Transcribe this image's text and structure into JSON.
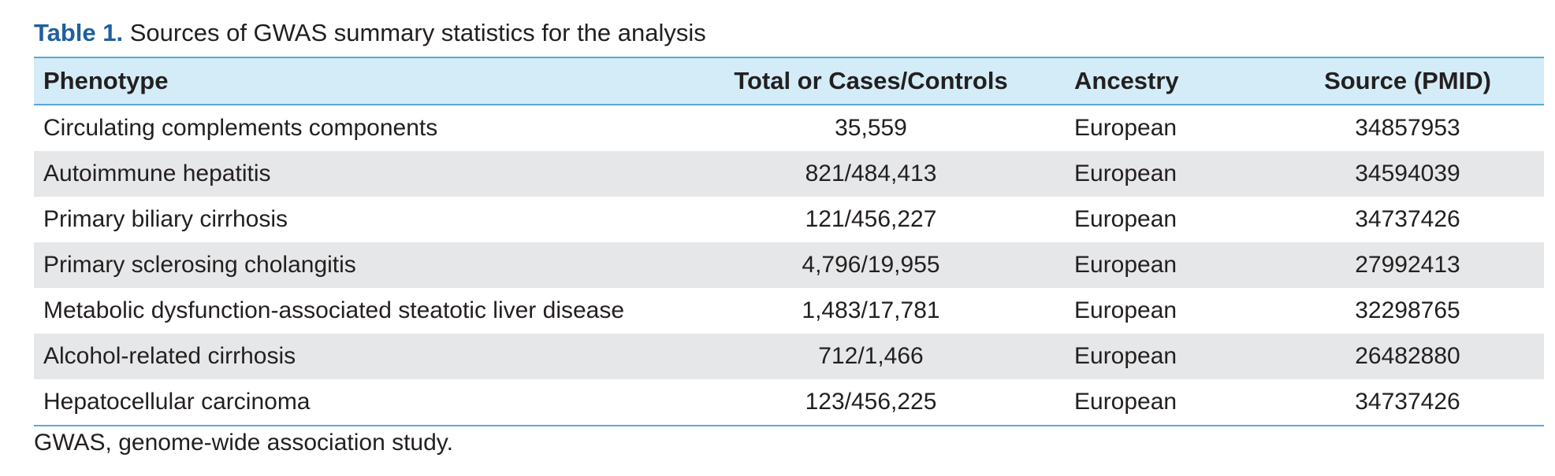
{
  "table_caption": {
    "label": "Table 1.",
    "text": " Sources of GWAS summary statistics for the analysis"
  },
  "columns": [
    "Phenotype",
    "Total or Cases/Controls",
    "Ancestry",
    "Source (PMID)"
  ],
  "rows": [
    [
      "Circulating complements components",
      "35,559",
      "European",
      "34857953"
    ],
    [
      "Autoimmune hepatitis",
      "821/484,413",
      "European",
      "34594039"
    ],
    [
      "Primary biliary cirrhosis",
      "121/456,227",
      "European",
      "34737426"
    ],
    [
      "Primary sclerosing cholangitis",
      "4,796/19,955",
      "European",
      "27992413"
    ],
    [
      "Metabolic dysfunction-associated steatotic liver disease",
      "1,483/17,781",
      "European",
      "32298765"
    ],
    [
      "Alcohol-related cirrhosis",
      "712/1,466",
      "European",
      "26482880"
    ],
    [
      "Hepatocellular carcinoma",
      "123/456,225",
      "European",
      "34737426"
    ]
  ],
  "footnote": "GWAS, genome-wide association study."
}
